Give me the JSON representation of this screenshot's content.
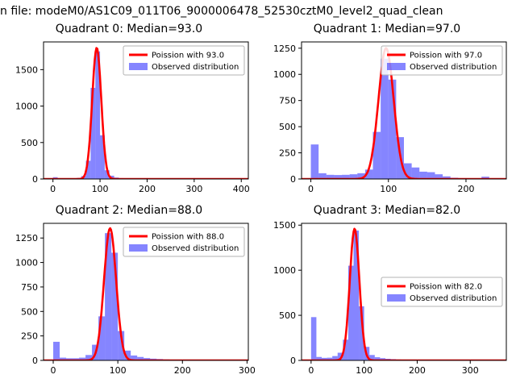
{
  "figure_title": "n file: modeM0/AS1C09_011T06_9000006478_52530cztM0_level2_quad_clean",
  "colors": {
    "curve": "#ff0000",
    "bars": "rgba(0,0,255,0.48)",
    "axes": "#000000",
    "legend_border": "#b3b3b3",
    "legend_bg": "rgba(255,255,255,0.85)"
  },
  "chart_data": [
    {
      "type": "bar",
      "title": "Quadrant 0: Median=93.0",
      "median": 93.0,
      "legend": [
        "Poission with 93.0",
        "Observed distribution"
      ],
      "legend_loc": "upper right",
      "xlim": [
        -20,
        415
      ],
      "ylim": [
        0,
        1880
      ],
      "xticks": [
        0,
        100,
        200,
        300,
        400
      ],
      "yticks": [
        0,
        500,
        1000,
        1500
      ],
      "bin_width": 10,
      "bin_starts": [
        0,
        10,
        20,
        30,
        40,
        50,
        60,
        70,
        80,
        90,
        100,
        110,
        120,
        130,
        140,
        150,
        160,
        170,
        180,
        190,
        200,
        210,
        220,
        230,
        240,
        250,
        260,
        270,
        280,
        290,
        300,
        310,
        320,
        330,
        340,
        350,
        360,
        370,
        380,
        390
      ],
      "counts": [
        25,
        4,
        3,
        3,
        6,
        15,
        40,
        250,
        1250,
        1750,
        600,
        120,
        45,
        20,
        12,
        8,
        6,
        5,
        4,
        3,
        3,
        2,
        2,
        2,
        2,
        2,
        1,
        1,
        1,
        1,
        1,
        1,
        1,
        1,
        1,
        1,
        1,
        1,
        1,
        1
      ],
      "curve": {
        "shape": "poisson_fit",
        "mean": 93.0,
        "sigma": 9.64,
        "peak": 1800
      }
    },
    {
      "type": "bar",
      "title": "Quadrant 1: Median=97.0",
      "median": 97.0,
      "legend": [
        "Poission with 97.0",
        "Observed distribution"
      ],
      "legend_loc": "upper right",
      "xlim": [
        -12,
        252
      ],
      "ylim": [
        0,
        1310
      ],
      "xticks": [
        0,
        100,
        200
      ],
      "yticks": [
        0,
        250,
        500,
        750,
        1000,
        1250
      ],
      "bin_width": 10,
      "bin_starts": [
        0,
        10,
        20,
        30,
        40,
        50,
        60,
        70,
        80,
        90,
        100,
        110,
        120,
        130,
        140,
        150,
        160,
        170,
        180,
        190,
        200,
        210,
        220,
        230,
        240
      ],
      "counts": [
        330,
        55,
        40,
        38,
        40,
        45,
        55,
        90,
        450,
        1150,
        950,
        400,
        150,
        110,
        70,
        65,
        45,
        25,
        12,
        8,
        6,
        5,
        22,
        6,
        4
      ],
      "curve": {
        "shape": "poisson_fit",
        "mean": 97.0,
        "sigma": 9.85,
        "peak": 1250
      }
    },
    {
      "type": "bar",
      "title": "Quadrant 2: Median=88.0",
      "median": 88.0,
      "legend": [
        "Poission with 88.0",
        "Observed distribution"
      ],
      "legend_loc": "upper right",
      "xlim": [
        -15,
        302
      ],
      "ylim": [
        0,
        1400
      ],
      "xticks": [
        0,
        100,
        200,
        300
      ],
      "yticks": [
        0,
        250,
        500,
        750,
        1000,
        1250
      ],
      "bin_width": 10,
      "bin_starts": [
        0,
        10,
        20,
        30,
        40,
        50,
        60,
        70,
        80,
        90,
        100,
        110,
        120,
        130,
        140,
        150,
        160,
        170,
        180,
        190,
        200,
        210,
        220,
        230,
        240,
        250,
        260,
        270,
        280,
        290
      ],
      "counts": [
        190,
        28,
        22,
        22,
        28,
        55,
        160,
        450,
        1300,
        1100,
        300,
        100,
        50,
        35,
        24,
        18,
        14,
        10,
        8,
        6,
        5,
        4,
        4,
        3,
        3,
        2,
        2,
        2,
        2,
        2
      ],
      "curve": {
        "shape": "poisson_fit",
        "mean": 88.0,
        "sigma": 9.38,
        "peak": 1350
      }
    },
    {
      "type": "bar",
      "title": "Quadrant 3: Median=82.0",
      "median": 82.0,
      "legend": [
        "Poission with 82.0",
        "Observed distribution"
      ],
      "legend_loc": "center right",
      "xlim": [
        -18,
        368
      ],
      "ylim": [
        0,
        1520
      ],
      "xticks": [
        0,
        100,
        200,
        300
      ],
      "yticks": [
        0,
        500,
        1000,
        1500
      ],
      "bin_width": 10,
      "bin_starts": [
        0,
        10,
        20,
        30,
        40,
        50,
        60,
        70,
        80,
        90,
        100,
        110,
        120,
        130,
        140,
        150,
        160,
        170,
        180,
        190,
        200,
        210,
        220,
        230,
        240,
        250,
        260,
        270,
        280,
        290,
        300,
        310,
        320,
        330,
        340,
        350
      ],
      "counts": [
        480,
        38,
        28,
        30,
        48,
        85,
        230,
        1050,
        1440,
        600,
        150,
        60,
        35,
        25,
        18,
        14,
        10,
        9,
        7,
        5,
        5,
        4,
        4,
        3,
        3,
        2,
        2,
        2,
        2,
        2,
        2,
        1,
        1,
        1,
        1,
        1
      ],
      "curve": {
        "shape": "poisson_fit",
        "mean": 82.0,
        "sigma": 9.06,
        "peak": 1460
      }
    }
  ]
}
